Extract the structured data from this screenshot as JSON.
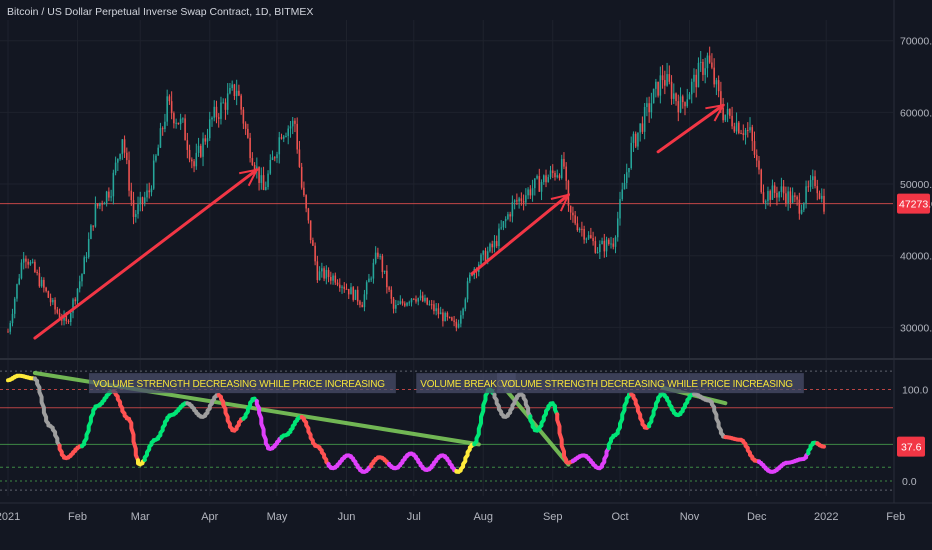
{
  "header": {
    "symbol_title": "Bitcoin / US Dollar Perpetual Inverse Swap Contract, 1D, BITMEX"
  },
  "colors": {
    "background": "#131722",
    "up": "#26a69a",
    "down": "#ef5350",
    "arrow": "#f23645",
    "label_yellow": "#f5e33a",
    "trend_green": "#7cc85a",
    "grid": "#1e222d",
    "osc_green": "#00e676",
    "osc_red": "#ff5252",
    "osc_magenta": "#e040fb",
    "osc_gray": "#9e9e9e",
    "osc_yellow": "#ffeb3b"
  },
  "chart_data": [
    {
      "type": "candlestick",
      "title": "Bitcoin / US Dollar Perpetual Inverse Swap Contract, 1D, BITMEX",
      "y_ticks": [
        "70000.0",
        "60000.0",
        "50000.0",
        "40000.0",
        "30000.0"
      ],
      "ylim": [
        26000,
        71500
      ],
      "last_price": 47273,
      "last_price_label": "47273.0",
      "x_ticks": [
        "2021",
        "Feb",
        "Mar",
        "Apr",
        "May",
        "Jun",
        "Jul",
        "Aug",
        "Sep",
        "Oct",
        "Nov",
        "Dec",
        "2022",
        "Feb"
      ],
      "date_range": [
        "2021-01-01",
        "2021-12-31"
      ],
      "close_path": [
        [
          "2021-01-01",
          29400
        ],
        [
          "2021-01-08",
          40500
        ],
        [
          "2021-01-15",
          36500
        ],
        [
          "2021-01-22",
          32500
        ],
        [
          "2021-01-27",
          30500
        ],
        [
          "2021-02-03",
          37500
        ],
        [
          "2021-02-09",
          46500
        ],
        [
          "2021-02-16",
          49500
        ],
        [
          "2021-02-21",
          56800
        ],
        [
          "2021-02-26",
          45500
        ],
        [
          "2021-03-05",
          49000
        ],
        [
          "2021-03-13",
          61000
        ],
        [
          "2021-03-20",
          58000
        ],
        [
          "2021-03-25",
          52500
        ],
        [
          "2021-04-02",
          59000
        ],
        [
          "2021-04-13",
          63500
        ],
        [
          "2021-04-18",
          56000
        ],
        [
          "2021-04-25",
          49000
        ],
        [
          "2021-05-03",
          57500
        ],
        [
          "2021-05-09",
          58500
        ],
        [
          "2021-05-12",
          49500
        ],
        [
          "2021-05-19",
          37500
        ],
        [
          "2021-05-27",
          37000
        ],
        [
          "2021-06-08",
          33500
        ],
        [
          "2021-06-15",
          40500
        ],
        [
          "2021-06-22",
          32500
        ],
        [
          "2021-07-01",
          34500
        ],
        [
          "2021-07-08",
          33000
        ],
        [
          "2021-07-20",
          30000
        ],
        [
          "2021-07-27",
          38000
        ],
        [
          "2021-08-06",
          41500
        ],
        [
          "2021-08-14",
          47000
        ],
        [
          "2021-08-23",
          49500
        ],
        [
          "2021-09-06",
          52500
        ],
        [
          "2021-09-08",
          46000
        ],
        [
          "2021-09-21",
          41000
        ],
        [
          "2021-09-28",
          42000
        ],
        [
          "2021-10-06",
          55000
        ],
        [
          "2021-10-15",
          61500
        ],
        [
          "2021-10-20",
          65000
        ],
        [
          "2021-10-28",
          61000
        ],
        [
          "2021-11-09",
          67500
        ],
        [
          "2021-11-16",
          60000
        ],
        [
          "2021-11-28",
          57000
        ],
        [
          "2021-12-04",
          48500
        ],
        [
          "2021-12-12",
          49000
        ],
        [
          "2021-12-20",
          47000
        ],
        [
          "2021-12-27",
          50500
        ],
        [
          "2021-12-31",
          47273
        ]
      ],
      "annotations": [
        {
          "type": "arrow",
          "from": [
            "2021-01-13",
            28500
          ],
          "to": [
            "2021-04-22",
            52000
          ]
        },
        {
          "type": "arrow",
          "from": [
            "2021-07-27",
            37500
          ],
          "to": [
            "2021-09-08",
            48500
          ]
        },
        {
          "type": "arrow",
          "from": [
            "2021-10-18",
            54500
          ],
          "to": [
            "2021-11-16",
            61000
          ]
        }
      ]
    },
    {
      "type": "line",
      "title": "",
      "y_ticks": [
        "100.0",
        "0.0"
      ],
      "ylim": [
        -12,
        130
      ],
      "last_value": 37.6,
      "last_value_label": "37.6",
      "reference_levels": [
        120,
        100,
        80,
        40,
        15,
        0,
        -10
      ],
      "series": [
        {
          "points": [
            [
              "2021-01-01",
              110
            ],
            [
              "2021-01-06",
              115
            ],
            [
              "2021-01-13",
              112
            ],
            [
              "2021-01-20",
              60
            ],
            [
              "2021-01-27",
              25
            ],
            [
              "2021-02-03",
              38
            ],
            [
              "2021-02-10",
              82
            ],
            [
              "2021-02-17",
              98
            ],
            [
              "2021-02-24",
              68
            ],
            [
              "2021-03-01",
              18
            ],
            [
              "2021-03-08",
              45
            ],
            [
              "2021-03-15",
              72
            ],
            [
              "2021-03-22",
              85
            ],
            [
              "2021-03-29",
              70
            ],
            [
              "2021-04-05",
              94
            ],
            [
              "2021-04-12",
              55
            ],
            [
              "2021-04-16",
              68
            ],
            [
              "2021-04-21",
              90
            ],
            [
              "2021-04-28",
              35
            ],
            [
              "2021-05-05",
              50
            ],
            [
              "2021-05-12",
              70
            ],
            [
              "2021-05-19",
              38
            ],
            [
              "2021-05-26",
              14
            ],
            [
              "2021-06-02",
              28
            ],
            [
              "2021-06-09",
              10
            ],
            [
              "2021-06-16",
              26
            ],
            [
              "2021-06-23",
              14
            ],
            [
              "2021-06-30",
              30
            ],
            [
              "2021-07-07",
              12
            ],
            [
              "2021-07-14",
              28
            ],
            [
              "2021-07-21",
              10
            ],
            [
              "2021-07-28",
              40
            ],
            [
              "2021-08-04",
              100
            ],
            [
              "2021-08-11",
              70
            ],
            [
              "2021-08-18",
              95
            ],
            [
              "2021-08-25",
              55
            ],
            [
              "2021-09-01",
              85
            ],
            [
              "2021-09-08",
              20
            ],
            [
              "2021-09-15",
              28
            ],
            [
              "2021-09-22",
              14
            ],
            [
              "2021-09-29",
              50
            ],
            [
              "2021-10-06",
              95
            ],
            [
              "2021-10-13",
              58
            ],
            [
              "2021-10-20",
              95
            ],
            [
              "2021-10-27",
              72
            ],
            [
              "2021-11-03",
              95
            ],
            [
              "2021-11-10",
              88
            ],
            [
              "2021-11-17",
              48
            ],
            [
              "2021-11-24",
              45
            ],
            [
              "2021-12-01",
              22
            ],
            [
              "2021-12-08",
              10
            ],
            [
              "2021-12-15",
              20
            ],
            [
              "2021-12-22",
              24
            ],
            [
              "2021-12-27",
              42
            ],
            [
              "2021-12-31",
              37.6
            ]
          ]
        }
      ],
      "color_segments": [
        [
          "2021-01-01",
          "2021-01-13",
          "yellow"
        ],
        [
          "2021-01-13",
          "2021-01-24",
          "gray"
        ],
        [
          "2021-01-24",
          "2021-02-03",
          "red"
        ],
        [
          "2021-02-03",
          "2021-02-17",
          "green"
        ],
        [
          "2021-02-17",
          "2021-02-28",
          "red"
        ],
        [
          "2021-02-28",
          "2021-03-03",
          "yellow"
        ],
        [
          "2021-03-03",
          "2021-03-22",
          "green"
        ],
        [
          "2021-03-22",
          "2021-04-05",
          "gray"
        ],
        [
          "2021-04-05",
          "2021-04-16",
          "red"
        ],
        [
          "2021-04-16",
          "2021-04-22",
          "green"
        ],
        [
          "2021-04-22",
          "2021-05-03",
          "magenta"
        ],
        [
          "2021-05-03",
          "2021-05-12",
          "green"
        ],
        [
          "2021-05-12",
          "2021-05-24",
          "red"
        ],
        [
          "2021-05-24",
          "2021-06-12",
          "magenta"
        ],
        [
          "2021-06-12",
          "2021-06-20",
          "red"
        ],
        [
          "2021-06-20",
          "2021-07-20",
          "magenta"
        ],
        [
          "2021-07-20",
          "2021-07-28",
          "yellow"
        ],
        [
          "2021-07-28",
          "2021-08-06",
          "green"
        ],
        [
          "2021-08-06",
          "2021-08-22",
          "gray"
        ],
        [
          "2021-08-22",
          "2021-09-03",
          "green"
        ],
        [
          "2021-09-03",
          "2021-09-10",
          "red"
        ],
        [
          "2021-09-10",
          "2021-09-26",
          "magenta"
        ],
        [
          "2021-09-26",
          "2021-10-06",
          "green"
        ],
        [
          "2021-10-06",
          "2021-10-14",
          "red"
        ],
        [
          "2021-10-14",
          "2021-11-03",
          "green"
        ],
        [
          "2021-11-03",
          "2021-11-17",
          "gray"
        ],
        [
          "2021-11-17",
          "2021-12-02",
          "red"
        ],
        [
          "2021-12-02",
          "2021-12-24",
          "magenta"
        ],
        [
          "2021-12-24",
          "2021-12-28",
          "green"
        ],
        [
          "2021-12-28",
          "2021-12-31",
          "red"
        ]
      ],
      "trend_lines": [
        {
          "from": [
            "2021-01-13",
            118
          ],
          "to": [
            "2021-07-30",
            40
          ]
        },
        {
          "from": [
            "2021-08-11",
            100
          ],
          "to": [
            "2021-09-08",
            18
          ]
        },
        {
          "from": [
            "2021-10-20",
            102
          ],
          "to": [
            "2021-11-17",
            85
          ]
        }
      ],
      "labels": [
        {
          "text": "VOLUME STRENGTH DECREASING WHILE PRICE INCREASING",
          "at": [
            "2021-02-07",
            108
          ]
        },
        {
          "text": "VOLUME BREAKOUT",
          "at": [
            "2021-07-03",
            108
          ]
        },
        {
          "text": "VOLUME STRENGTH DECREASING WHILE PRICE INCREASING",
          "at": [
            "2021-08-08",
            108
          ]
        }
      ]
    }
  ]
}
